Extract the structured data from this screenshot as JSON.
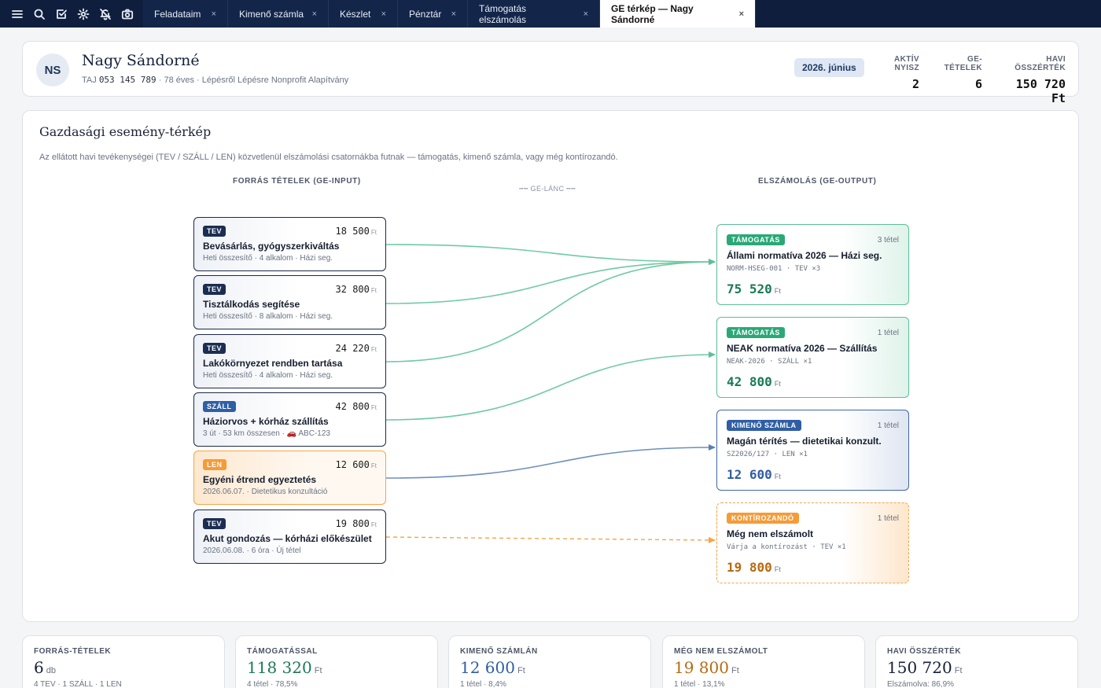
{
  "tabs": [
    {
      "label": "Feladataim"
    },
    {
      "label": "Kimenő számla"
    },
    {
      "label": "Készlet"
    },
    {
      "label": "Pénztár"
    },
    {
      "label": "Támogatás elszámolás"
    },
    {
      "label": "GE térkép — Nagy Sándorné"
    }
  ],
  "tab_close": "×",
  "patient": {
    "initials": "NS",
    "name": "Nagy Sándorné",
    "taj_label": "TAJ",
    "taj": "053 145 789",
    "meta": "· 78 éves · Lépésről Lépésre Nonprofit Alapítvány",
    "month": "2026. június",
    "stats": [
      {
        "label": "AKTÍV NYISZ",
        "value": "2"
      },
      {
        "label": "GE-TÉTELEK",
        "value": "6"
      },
      {
        "label": "HAVI ÖSSZÉRTÉK",
        "value": "150 720 Ft"
      }
    ]
  },
  "map": {
    "title": "Gazdasági esemény-térkép",
    "description": "Az ellátott havi tevékenységei (TEV / SZÁLL / LEN) közvetlenül elszámolási csatornákba futnak — támogatás, kimenő számla, vagy még kontírozandó.",
    "source_header": "FORRÁS TÉTELEK (GE-INPUT)",
    "chain_label": "┅┅ GE-LÁNC ┅┅",
    "target_header": "ELSZÁMOLÁS (GE-OUTPUT)",
    "currency": "Ft",
    "sources": [
      {
        "badge": "TEV",
        "amount": "18 500",
        "name": "Bevásárlás, gyógyszerkiváltás",
        "sub": "Heti összesítő · 4 alkalom · Házi seg."
      },
      {
        "badge": "TEV",
        "amount": "32 800",
        "name": "Tisztálkodás segítése",
        "sub": "Heti összesítő · 8 alkalom · Házi seg."
      },
      {
        "badge": "TEV",
        "amount": "24 220",
        "name": "Lakókörnyezet rendben tartása",
        "sub": "Heti összesítő · 4 alkalom · Házi seg."
      },
      {
        "badge": "SZÁLL",
        "amount": "42 800",
        "name": "Háziorvos + kórház szállítás",
        "sub": "3 út · 53 km összesen · 🚗 ABC-123"
      },
      {
        "badge": "LEN",
        "amount": "12 600",
        "name": "Egyéni étrend egyeztetés",
        "sub": "2026.06.07. · Dietetikus konzultáció"
      },
      {
        "badge": "TEV",
        "amount": "19 800",
        "name": "Akut gondozás — kórházi előkészület",
        "sub": "2026.06.08. · 6 óra · Új tétel"
      }
    ],
    "targets": [
      {
        "badge": "TÁMOGATÁS",
        "count": "3 tétel",
        "name": "Állami normatíva 2026 — Házi seg.",
        "code": "NORM-HSEG-001 · TEV ×3",
        "amount": "75 520"
      },
      {
        "badge": "TÁMOGATÁS",
        "count": "1 tétel",
        "name": "NEAK normatíva 2026 — Szállítás",
        "code": "NEAK-2026 · SZÁLL ×1",
        "amount": "42 800"
      },
      {
        "badge": "KIMENŐ SZÁMLA",
        "count": "1 tétel",
        "name": "Magán térítés — dietetikai konzult.",
        "code": "SZ2026/127 · LEN ×1",
        "amount": "12 600"
      },
      {
        "badge": "KONTÍROZANDÓ",
        "count": "1 tétel",
        "name": "Még nem elszámolt",
        "code": "Várja a kontírozást · TEV ×1",
        "amount": "19 800"
      }
    ],
    "colors": {
      "support": "#6fcaa5",
      "invoice": "#6e8fbf",
      "pending": "#f5a54a"
    }
  },
  "kpis": [
    {
      "label": "FORRÁS-TÉTELEK",
      "value": "6",
      "unit": "db",
      "sub": "4 TEV · 1 SZÁLL · 1 LEN",
      "color": "#14203a"
    },
    {
      "label": "TÁMOGATÁSSAL",
      "value": "118 320",
      "unit": "Ft",
      "sub": "4 tétel · 78,5%",
      "color": "#1a7a55"
    },
    {
      "label": "KIMENŐ SZÁMLÁN",
      "value": "12 600",
      "unit": "Ft",
      "sub": "1 tétel · 8,4%",
      "color": "#2f5ea4"
    },
    {
      "label": "MÉG NEM ELSZÁMOLT",
      "value": "19 800",
      "unit": "Ft",
      "sub": "1 tétel · 13,1%",
      "color": "#b86a10"
    },
    {
      "label": "HAVI ÖSSZÉRTÉK",
      "value": "150 720",
      "unit": "Ft",
      "sub": "Elszámolva: 86,9%",
      "color": "#14203a"
    }
  ]
}
